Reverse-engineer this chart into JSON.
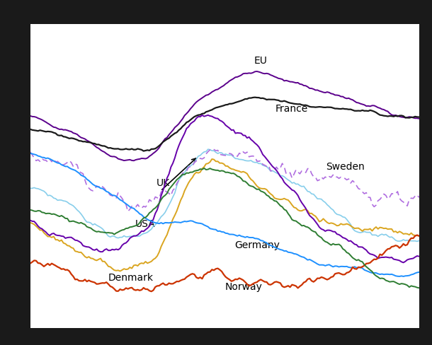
{
  "n_points": 200,
  "fig_bg": "#1a1a1a",
  "plot_bg": "#ffffff",
  "grid_color": "#cccccc",
  "colors": {
    "EU": "#5b008c",
    "France": "#1a1a1a",
    "UK": "#87ceeb",
    "USA": "#6600aa",
    "Sweden": "#b06ee0",
    "Germany": "#1e90ff",
    "Denmark": "#DAA520",
    "Norway": "#cc3300",
    "Green": "#2e7d32"
  },
  "label_texts": {
    "EU": "EU",
    "France": "France",
    "UK": "UK",
    "USA": "USA",
    "Sweden": "Sweden",
    "Germany": "Germany",
    "Denmark": "Denmark",
    "Norway": "Norway"
  }
}
